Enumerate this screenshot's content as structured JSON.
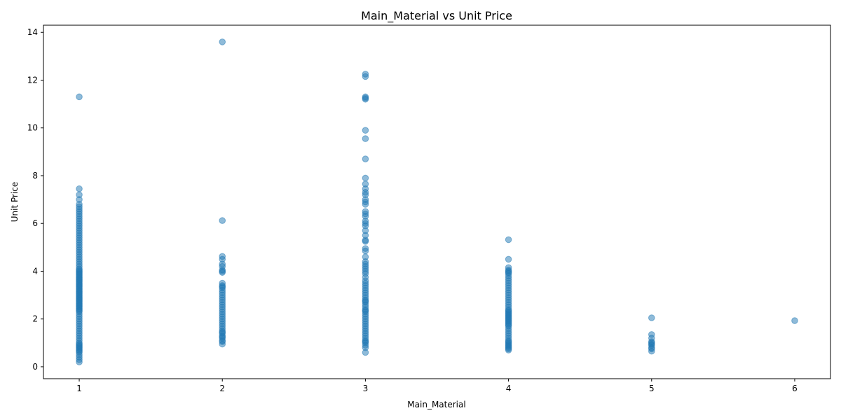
{
  "chart_data": {
    "type": "scatter",
    "title": "Main_Material vs Unit Price",
    "xlabel": "Main_Material",
    "ylabel": "Unit Price",
    "xlim": [
      0.75,
      6.25
    ],
    "ylim": [
      -0.5,
      14.3
    ],
    "xticks": [
      1,
      2,
      3,
      4,
      5,
      6
    ],
    "yticks": [
      0,
      2,
      4,
      6,
      8,
      10,
      12,
      14
    ],
    "grid": false,
    "legend": "none",
    "marker_color": "#1f77b4",
    "marker_alpha": 0.5,
    "series": [
      {
        "x": [
          1,
          1,
          1,
          1,
          1,
          1,
          1,
          1,
          1,
          1,
          1,
          1,
          1,
          1,
          1,
          1,
          1,
          1,
          1,
          1,
          1,
          1,
          1,
          1,
          1,
          1,
          1,
          1,
          1,
          1,
          1,
          1,
          1,
          1,
          1,
          1,
          1,
          1,
          1,
          1,
          1,
          1,
          1,
          1,
          1,
          1,
          1,
          1,
          1,
          1,
          1,
          1,
          1,
          1,
          1,
          1,
          1,
          1,
          1,
          1,
          1,
          1,
          1,
          1,
          1,
          1,
          1,
          1,
          1,
          1,
          1,
          1,
          1,
          1,
          1,
          1,
          1,
          1,
          1,
          1,
          1,
          1,
          1,
          1,
          1,
          1,
          1,
          1,
          1,
          1,
          1,
          1,
          1,
          2,
          2,
          2,
          2,
          2,
          2,
          2,
          2,
          2,
          2,
          2,
          2,
          2,
          2,
          2,
          2,
          2,
          2,
          2,
          2,
          2,
          2,
          2,
          2,
          2,
          2,
          2,
          2,
          2,
          2,
          2,
          2,
          2,
          2,
          2,
          2,
          2,
          2,
          2,
          3,
          3,
          3,
          3,
          3,
          3,
          3,
          3,
          3,
          3,
          3,
          3,
          3,
          3,
          3,
          3,
          3,
          3,
          3,
          3,
          3,
          3,
          3,
          3,
          3,
          3,
          3,
          3,
          3,
          3,
          3,
          3,
          3,
          3,
          3,
          3,
          3,
          3,
          3,
          3,
          3,
          3,
          3,
          3,
          3,
          3,
          3,
          3,
          3,
          3,
          3,
          3,
          3,
          3,
          3,
          3,
          3,
          3,
          3,
          3,
          3,
          3,
          3,
          3,
          3,
          3,
          3,
          3,
          3,
          4,
          4,
          4,
          4,
          4,
          4,
          4,
          4,
          4,
          4,
          4,
          4,
          4,
          4,
          4,
          4,
          4,
          4,
          4,
          4,
          4,
          4,
          4,
          4,
          4,
          4,
          4,
          4,
          4,
          4,
          4,
          4,
          4,
          4,
          4,
          4,
          4,
          4,
          4,
          4,
          4,
          4,
          4,
          4,
          4,
          4,
          4,
          4,
          4,
          4,
          5,
          5,
          5,
          5,
          5,
          5,
          5,
          5,
          5,
          5,
          6
        ],
        "y": [
          11.3,
          7.45,
          7.2,
          7.0,
          6.8,
          6.7,
          6.6,
          6.5,
          6.4,
          6.3,
          6.2,
          6.1,
          6.0,
          5.9,
          5.8,
          5.7,
          5.6,
          5.5,
          5.4,
          5.3,
          5.2,
          5.1,
          5.0,
          4.9,
          4.8,
          4.7,
          4.6,
          4.5,
          4.4,
          4.3,
          4.2,
          4.1,
          4.0,
          3.9,
          3.8,
          3.7,
          3.6,
          3.5,
          3.4,
          3.3,
          3.2,
          3.1,
          3.0,
          2.9,
          2.8,
          2.7,
          2.6,
          2.5,
          2.4,
          2.3,
          2.2,
          2.1,
          2.0,
          1.9,
          1.8,
          1.7,
          1.6,
          1.5,
          1.4,
          1.3,
          1.2,
          1.1,
          1.0,
          0.95,
          0.9,
          0.85,
          0.8,
          0.75,
          0.7,
          0.65,
          0.6,
          0.5,
          0.4,
          0.3,
          0.2,
          4.05,
          3.95,
          3.85,
          3.75,
          3.65,
          3.55,
          3.45,
          3.35,
          3.25,
          3.15,
          3.05,
          2.95,
          2.85,
          2.75,
          2.65,
          2.55,
          2.45,
          2.35,
          13.6,
          6.12,
          4.62,
          4.5,
          4.3,
          4.2,
          4.05,
          4.0,
          3.95,
          3.5,
          3.4,
          3.35,
          3.3,
          3.2,
          3.1,
          3.0,
          2.9,
          2.8,
          2.7,
          2.6,
          2.5,
          2.4,
          2.3,
          2.2,
          2.1,
          2.0,
          1.9,
          1.8,
          1.7,
          1.6,
          1.5,
          1.45,
          1.4,
          1.3,
          1.25,
          1.2,
          1.1,
          1.05,
          0.95,
          12.25,
          12.15,
          11.3,
          11.25,
          11.2,
          9.9,
          9.55,
          8.7,
          7.9,
          7.65,
          7.45,
          7.3,
          7.2,
          7.0,
          6.9,
          6.8,
          6.5,
          6.4,
          6.3,
          6.1,
          6.0,
          5.9,
          5.7,
          5.5,
          5.3,
          5.25,
          4.95,
          4.85,
          4.6,
          4.4,
          4.3,
          4.2,
          4.1,
          4.0,
          3.9,
          3.75,
          3.6,
          3.5,
          3.4,
          3.3,
          3.2,
          3.1,
          3.0,
          2.9,
          2.8,
          2.7,
          2.6,
          2.5,
          2.4,
          2.3,
          2.2,
          2.1,
          2.0,
          1.9,
          1.8,
          1.7,
          1.6,
          1.5,
          1.4,
          1.3,
          1.2,
          1.1,
          1.05,
          1.0,
          0.9,
          0.8,
          0.6,
          2.75,
          2.35,
          5.32,
          4.5,
          4.15,
          4.05,
          4.0,
          3.95,
          3.9,
          3.8,
          3.7,
          3.6,
          3.5,
          3.4,
          3.3,
          3.2,
          3.1,
          3.0,
          2.9,
          2.8,
          2.7,
          2.6,
          2.5,
          2.4,
          2.35,
          2.3,
          2.2,
          2.15,
          2.1,
          2.05,
          2.0,
          1.95,
          1.9,
          1.85,
          1.8,
          1.7,
          1.6,
          1.5,
          1.4,
          1.3,
          1.2,
          1.1,
          1.05,
          1.0,
          0.95,
          0.9,
          0.85,
          0.8,
          0.75,
          0.7,
          2.25,
          1.75,
          2.05,
          1.35,
          1.2,
          1.05,
          1.0,
          0.95,
          0.9,
          0.8,
          0.75,
          0.65,
          1.93
        ]
      }
    ]
  }
}
